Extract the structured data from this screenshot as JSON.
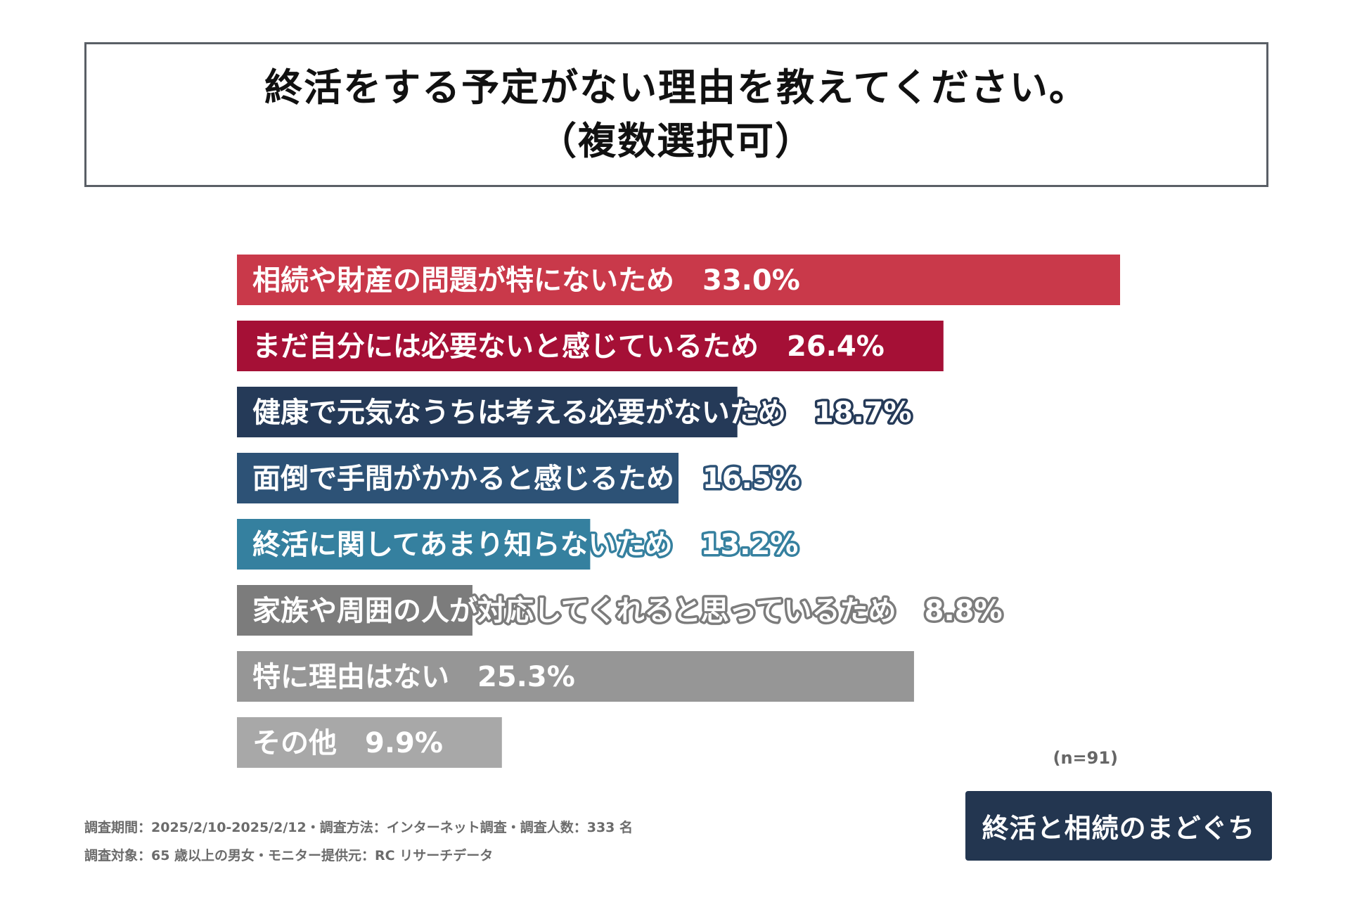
{
  "title": {
    "line1": "終活をする予定がない理由を教えてください。",
    "line2": "（複数選択可）"
  },
  "chart_data": {
    "type": "bar",
    "orientation": "horizontal",
    "categories": [
      "相続や財産の問題が特にないため",
      "まだ自分には必要ないと感じているため",
      "健康で元気なうちは考える必要がないため",
      "面倒で手間がかかると感じるため",
      "終活に関してあまり知らないため",
      "家族や周囲の人が対応してくれると思っているため",
      "特に理由はない",
      "その他"
    ],
    "values": [
      33.0,
      26.4,
      18.7,
      16.5,
      13.2,
      8.8,
      25.3,
      9.9
    ],
    "value_labels": [
      "33.0%",
      "26.4%",
      "18.7%",
      "16.5%",
      "13.2%",
      "8.8%",
      "25.3%",
      "9.9%"
    ],
    "colors": [
      "#c9394a",
      "#a51036",
      "#253a58",
      "#2d5276",
      "#35809f",
      "#7c7c7c",
      "#969696",
      "#a8a8a8"
    ],
    "xlim": [
      0,
      33.0
    ],
    "grid": false,
    "legend": "none"
  },
  "sample_note": "(n=91)",
  "footer": {
    "line1": "調査期間：2025/2/10-2025/2/12・調査方法：インターネット調査・調査人数：333 名",
    "line2": "調査対象：65 歳以上の男女・モニター提供元：RC リサーチデータ"
  },
  "logo": {
    "text": "終活と相続のまどぐち",
    "background": "#233650",
    "mark_color": "#d0304a"
  }
}
